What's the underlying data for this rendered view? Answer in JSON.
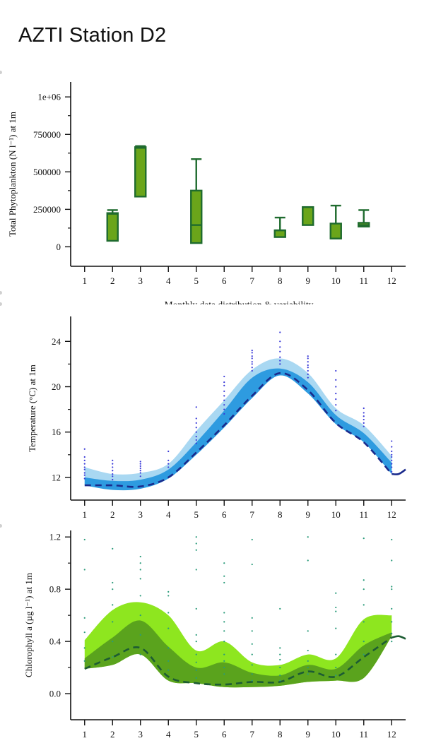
{
  "page": {
    "title": "AZTI Station D2"
  },
  "chart_data": [
    {
      "id": "phyto",
      "type": "box",
      "ylabel": "Total Phytoplankton (N l⁻¹) at 1m",
      "xlabel": "Monthly data distribution & variability",
      "xlim": [
        0.5,
        12.5
      ],
      "ylim": [
        -130000,
        1100000
      ],
      "yticks": [
        0,
        250000,
        500000,
        750000,
        1000000
      ],
      "ytick_labels": [
        "0",
        "250000",
        "500000",
        "750000",
        "1e+06"
      ],
      "xticks": [
        1,
        2,
        3,
        4,
        5,
        6,
        7,
        8,
        9,
        10,
        11,
        12
      ],
      "xtick_labels": [
        "1",
        "2",
        "3",
        "4",
        "5",
        "6",
        "7",
        "8",
        "9",
        "10",
        "11",
        "12"
      ],
      "colors": {
        "fill": "#6aa51a",
        "stroke": "#1f6b2e"
      },
      "boxes": [
        {
          "month": 2,
          "low": 40000,
          "q1": 40000,
          "median": 220000,
          "q3": 225000,
          "high": 245000
        },
        {
          "month": 3,
          "low": 335000,
          "q1": 335000,
          "median": 660000,
          "q3": 665000,
          "high": 672000
        },
        {
          "month": 5,
          "low": 25000,
          "q1": 25000,
          "median": 145000,
          "q3": 375000,
          "high": 585000
        },
        {
          "month": 8,
          "low": 65000,
          "q1": 65000,
          "median": 110000,
          "q3": 110000,
          "high": 195000
        },
        {
          "month": 9,
          "low": 145000,
          "q1": 145000,
          "median": 265000,
          "q3": 265000,
          "high": 265000
        },
        {
          "month": 10,
          "low": 55000,
          "q1": 55000,
          "median": 55000,
          "q3": 155000,
          "high": 275000
        },
        {
          "month": 11,
          "low": 135000,
          "q1": 135000,
          "median": 145000,
          "q3": 160000,
          "high": 245000
        }
      ]
    },
    {
      "id": "temp",
      "type": "area",
      "ylabel": "Temperature (°C) at 1m",
      "xlim": [
        0.5,
        12.5
      ],
      "ylim": [
        10,
        26.2
      ],
      "yticks": [
        12,
        16,
        20,
        24
      ],
      "ytick_labels": [
        "12",
        "16",
        "20",
        "24"
      ],
      "xticks": [
        1,
        2,
        3,
        4,
        5,
        6,
        7,
        8,
        9,
        10,
        11,
        12
      ],
      "xtick_labels": [
        "1",
        "2",
        "3",
        "4",
        "5",
        "6",
        "7",
        "8",
        "9",
        "10",
        "11",
        "12"
      ],
      "colors": {
        "outer": "#a9d8f2",
        "inner": "#2e9be0",
        "line": "#1a2a8c",
        "dots": "#3a3ad8"
      },
      "x": [
        1,
        2,
        3,
        4,
        5,
        6,
        7,
        8,
        9,
        10,
        11,
        12
      ],
      "outer_low": [
        11.4,
        11.0,
        11.1,
        12.0,
        14.3,
        16.6,
        19.3,
        21.2,
        19.6,
        17.0,
        15.4,
        12.4
      ],
      "outer_high": [
        12.9,
        12.3,
        12.4,
        13.2,
        16.1,
        18.8,
        21.5,
        22.5,
        21.2,
        18.1,
        16.6,
        13.9
      ],
      "inner_low": [
        11.3,
        10.9,
        11.0,
        11.9,
        14.0,
        16.4,
        19.0,
        21.0,
        19.4,
        16.7,
        15.1,
        12.3
      ],
      "inner_high": [
        12.0,
        11.7,
        11.8,
        12.7,
        15.1,
        17.9,
        20.8,
        21.6,
        20.4,
        17.5,
        15.9,
        13.3
      ],
      "mean": [
        11.3,
        11.3,
        11.2,
        12.0,
        14.2,
        16.6,
        19.2,
        21.2,
        19.7,
        16.8,
        15.1,
        12.3
      ],
      "mean_tail": {
        "x": [
          12,
          12.25,
          12.5
        ],
        "y": [
          12.3,
          12.3,
          12.7
        ]
      },
      "points": [
        {
          "month": 1,
          "values": [
            11.9,
            12.2,
            12.4,
            12.7,
            12.9,
            13.2,
            13.5,
            13.8,
            14.5
          ]
        },
        {
          "month": 2,
          "values": [
            11.8,
            12.1,
            12.3,
            12.6,
            12.9,
            13.2,
            13.5
          ]
        },
        {
          "month": 3,
          "values": [
            12.1,
            12.4,
            12.6,
            12.8,
            13.0,
            13.2,
            13.4
          ]
        },
        {
          "month": 4,
          "values": [
            12.9,
            13.2,
            13.5,
            14.3
          ]
        },
        {
          "month": 5,
          "values": [
            15.0,
            15.3,
            15.6,
            16.0,
            16.4,
            16.8,
            17.2,
            18.2
          ]
        },
        {
          "month": 6,
          "values": [
            17.6,
            18.0,
            18.4,
            18.8,
            19.2,
            19.6,
            20.1,
            20.4,
            20.9
          ]
        },
        {
          "month": 7,
          "values": [
            21.4,
            21.7,
            22.0,
            22.2,
            22.5,
            22.7,
            23.0,
            23.2
          ]
        },
        {
          "month": 8,
          "values": [
            22.0,
            22.3,
            22.6,
            23.1,
            23.5,
            24.0,
            24.8
          ]
        },
        {
          "month": 9,
          "values": [
            20.8,
            21.1,
            21.4,
            21.7,
            21.9,
            22.2,
            22.5,
            22.7
          ]
        },
        {
          "month": 10,
          "values": [
            17.9,
            18.4,
            18.9,
            19.4,
            20.0,
            20.6,
            21.4
          ]
        },
        {
          "month": 11,
          "values": [
            16.5,
            16.8,
            17.1,
            17.4,
            17.7,
            18.1
          ]
        },
        {
          "month": 12,
          "values": [
            12.5,
            12.9,
            13.2,
            13.5,
            13.8,
            14.0,
            14.3,
            14.7,
            15.2
          ]
        }
      ]
    },
    {
      "id": "chl",
      "type": "area",
      "ylabel": "Chlorophyll a (µg l⁻¹) at 1m",
      "xlim": [
        0.5,
        12.5
      ],
      "ylim": [
        -0.2,
        1.25
      ],
      "yticks": [
        0.0,
        0.4,
        0.8,
        1.2
      ],
      "ytick_labels": [
        "0.0",
        "0.4",
        "0.8",
        "1.2"
      ],
      "xticks": [
        1,
        2,
        3,
        4,
        5,
        6,
        7,
        8,
        9,
        10,
        11,
        12
      ],
      "xtick_labels": [
        "1",
        "2",
        "3",
        "4",
        "5",
        "6",
        "7",
        "8",
        "9",
        "10",
        "11",
        "12"
      ],
      "colors": {
        "outer": "#8ee61f",
        "inner": "#5aa31d",
        "line": "#1d5c33",
        "dots": "#2a9b7a"
      },
      "x": [
        1,
        2,
        3,
        4,
        5,
        6,
        7,
        8,
        9,
        10,
        11,
        12
      ],
      "outer_low": [
        0.19,
        0.22,
        0.3,
        0.1,
        0.08,
        0.05,
        0.05,
        0.06,
        0.09,
        0.1,
        0.12,
        0.44
      ],
      "outer_high": [
        0.41,
        0.64,
        0.7,
        0.6,
        0.33,
        0.4,
        0.24,
        0.22,
        0.3,
        0.27,
        0.57,
        0.6
      ],
      "inner_low": [
        0.19,
        0.22,
        0.3,
        0.1,
        0.08,
        0.05,
        0.05,
        0.06,
        0.09,
        0.1,
        0.12,
        0.44
      ],
      "inner_high": [
        0.27,
        0.43,
        0.56,
        0.36,
        0.2,
        0.24,
        0.16,
        0.14,
        0.22,
        0.19,
        0.37,
        0.47
      ],
      "mean": [
        0.19,
        0.28,
        0.35,
        0.13,
        0.08,
        0.07,
        0.09,
        0.09,
        0.17,
        0.13,
        0.28,
        0.43
      ],
      "mean_tail": {
        "x": [
          12,
          12.25,
          12.5
        ],
        "y": [
          0.43,
          0.44,
          0.42
        ]
      },
      "points": [
        {
          "month": 1,
          "values": [
            0.25,
            0.35,
            0.47,
            0.58,
            0.95,
            1.18
          ]
        },
        {
          "month": 2,
          "values": [
            0.28,
            0.4,
            0.55,
            0.68,
            0.8,
            0.85,
            1.11
          ]
        },
        {
          "month": 3,
          "values": [
            0.3,
            0.45,
            0.6,
            0.75,
            0.88,
            0.95,
            1.0,
            1.05
          ]
        },
        {
          "month": 4,
          "values": [
            0.18,
            0.25,
            0.35,
            0.5,
            0.62,
            0.75,
            0.78
          ]
        },
        {
          "month": 5,
          "values": [
            0.12,
            0.18,
            0.24,
            0.3,
            0.4,
            0.45,
            0.65,
            0.95,
            1.1,
            1.15,
            1.2
          ]
        },
        {
          "month": 6,
          "values": [
            0.15,
            0.2,
            0.25,
            0.3,
            0.4,
            0.48,
            0.55,
            0.62,
            0.85,
            0.9,
            1.0
          ]
        },
        {
          "month": 7,
          "values": [
            0.1,
            0.15,
            0.22,
            0.3,
            0.38,
            0.48,
            0.58,
            0.99,
            1.18
          ]
        },
        {
          "month": 8,
          "values": [
            0.1,
            0.14,
            0.2,
            0.26,
            0.3,
            0.35,
            0.65
          ]
        },
        {
          "month": 9,
          "values": [
            0.15,
            0.2,
            0.25,
            0.33,
            0.48,
            1.02,
            1.2
          ]
        },
        {
          "month": 10,
          "values": [
            0.14,
            0.2,
            0.3,
            0.5,
            0.63,
            0.66,
            0.77
          ]
        },
        {
          "month": 11,
          "values": [
            0.3,
            0.4,
            0.55,
            0.68,
            0.8,
            0.87,
            1.19
          ]
        },
        {
          "month": 12,
          "values": [
            0.4,
            0.46,
            0.55,
            0.65,
            0.8,
            0.82,
            1.02,
            1.18
          ]
        }
      ]
    }
  ]
}
